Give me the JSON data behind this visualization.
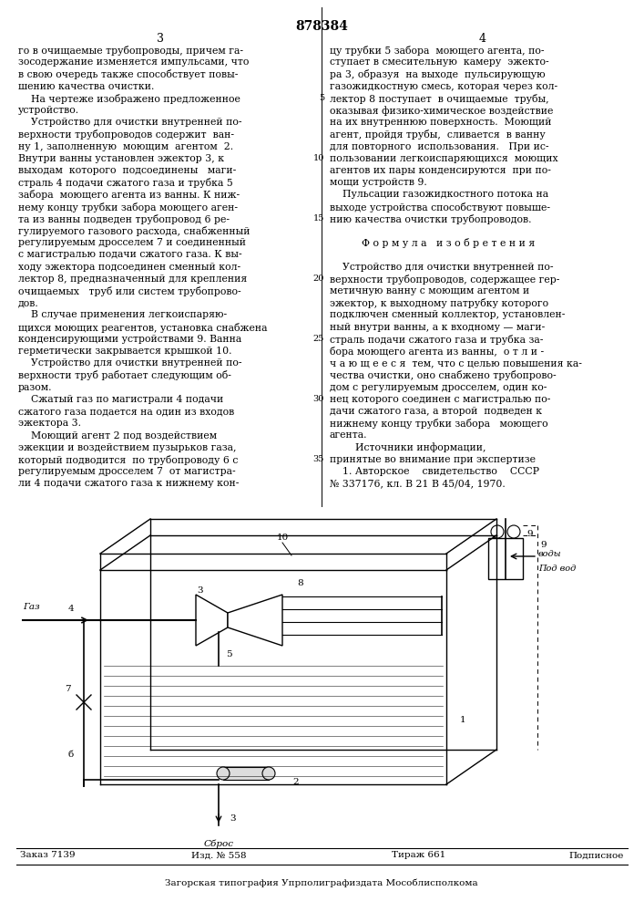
{
  "patent_number": "878384",
  "page_left": "3",
  "page_right": "4",
  "bg_color": "#ffffff",
  "text_color": "#000000",
  "col1_lines": [
    "го в очищаемые трубопроводы, причем га-",
    "зосодержание изменяется импульсами, что",
    "в свою очередь также способствует повы-",
    "шению качества очистки.",
    "    На чертеже изображено предложенное",
    "устройство.",
    "    Устройство для очистки внутренней по-",
    "верхности трубопроводов содержит  ван-",
    "ну 1, заполненную  моющим  агентом  2.",
    "Внутри ванны установлен эжектор 3, к",
    "выходам  которого  подсоединены   маги-",
    "страль 4 подачи сжатого газа и трубка 5",
    "забора  моющего агента из ванны. К ниж-",
    "нему концу трубки забора моющего аген-",
    "та из ванны подведен трубопровод 6 ре-",
    "гулируемого газового расхода, снабженный",
    "регулируемым дросселем 7 и соединенный",
    "с магистралью подачи сжатого газа. К вы-",
    "ходу эжектора подсоединен сменный кол-",
    "лектор 8, предназначенный для крепления",
    "очищаемых   труб или систем трубопрово-",
    "дов.",
    "    В случае применения легкоиспаряю-",
    "щихся моющих реагентов, установка снабжена",
    "конденсирующими устройствами 9. Ванна",
    "герметически закрывается крышкой 10.",
    "    Устройство для очистки внутренней по-",
    "верхности труб работает следующим об-",
    "разом.",
    "    Сжатый газ по магистрали 4 подачи",
    "сжатого газа подается на один из входов",
    "эжектора 3.",
    "    Моющий агент 2 под воздействием",
    "эжекции и воздействием пузырьков газа,",
    "который подводится  по трубопроводу 6 с",
    "регулируемым дросселем 7  от магистра-",
    "ли 4 подачи сжатого газа к нижнему кон-"
  ],
  "col2_lines": [
    "цу трубки 5 забора  моющего агента, по-",
    "ступает в смесительную  камеру  эжекто-",
    "ра 3, образуя  на выходе  пульсирующую",
    "газожидкостную смесь, которая через кол-",
    "лектор 8 поступает  в очищаемые  трубы,",
    "оказывая физико-химическое воздействие",
    "на их внутреннюю поверхность.  Моющий",
    "агент, пройдя трубы,  сливается  в ванну",
    "для повторного  использования.   При ис-",
    "пользовании легкоиспаряющихся  моющих",
    "агентов их пары конденсируются  при по-",
    "мощи устройств 9.",
    "    Пульсации газожидкостного потока на",
    "выходе устройства способствуют повыше-",
    "нию качества очистки трубопроводов.",
    "",
    "          Ф о р м у л а   и з о б р е т е н и я",
    "",
    "    Устройство для очистки внутренней по-",
    "верхности трубопроводов, содержащее гер-",
    "метичную ванну с моющим агентом и",
    "эжектор, к выходному патрубку которого",
    "подключен сменный коллектор, установлен-",
    "ный внутри ванны, а к входному — маги-",
    "страль подачи сжатого газа и трубка за-",
    "бора моющего агента из ванны,  о т л и -",
    "ч а ю щ е е с я  тем, что с целью повышения ка-",
    "чества очистки, оно снабжено трубопрово-",
    "дом с регулируемым дросселем, один ко-",
    "нец которого соединен с магистралью по-",
    "дачи сжатого газа, а второй  подведен к",
    "нижнему концу трубки забора   моющего",
    "агента.",
    "        Источники информации,",
    "принятые во внимание при экспертизе",
    "    1. Авторское    свидетельство    СССР",
    "№ 337176, кл. В 21 В 45/04, 1970."
  ],
  "line_nums": {
    "5": 5,
    "10": 10,
    "15": 15,
    "20": 20,
    "25": 25,
    "30": 30,
    "35": 35
  },
  "footer_left": "Заказ 7139",
  "footer_mid1": "Изд. № 558",
  "footer_mid2": "Тираж 661",
  "footer_right": "Подписное",
  "footer_bottom": "Загорская типография Упрполиграфиздата Мособлисполкома"
}
